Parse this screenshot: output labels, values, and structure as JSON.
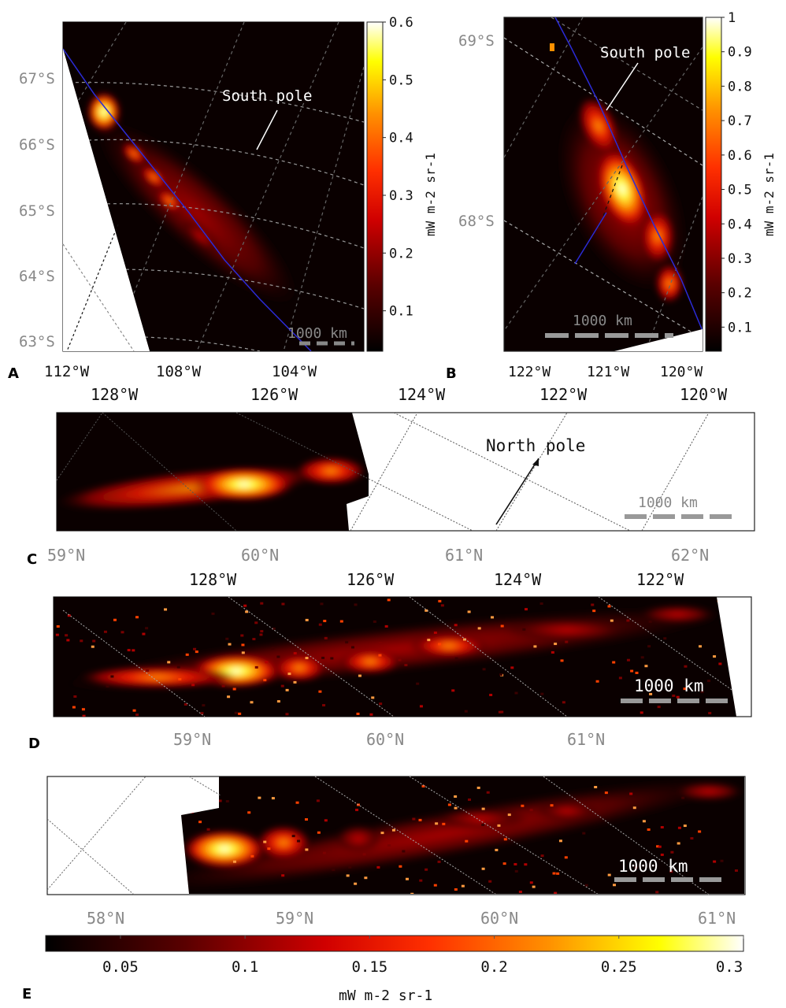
{
  "colors": {
    "cmap": [
      "#000000",
      "#5a0000",
      "#c00000",
      "#ff2a00",
      "#ff8c00",
      "#ffff00",
      "#ffffff"
    ],
    "grid_dark": "#555555",
    "grid_light": "#aaaaaa",
    "track": "#2b2bd6"
  },
  "chart_data": [
    {
      "panel": "A",
      "type": "heatmap",
      "lat_labels": [
        "67°S",
        "66°S",
        "65°S",
        "64°S",
        "63°S"
      ],
      "lon_labels": [
        "112°W",
        "108°W",
        "104°W"
      ],
      "annotation": "South pole",
      "scale_bar": "1000 km",
      "colorbar": {
        "ticks": [
          0.1,
          0.2,
          0.3,
          0.4,
          0.5,
          0.6
        ],
        "range": [
          0.03,
          0.6
        ],
        "label": "mW m-2 sr-1"
      }
    },
    {
      "panel": "B",
      "type": "heatmap",
      "lat_labels": [
        "69°S",
        "68°S"
      ],
      "lon_labels": [
        "122°W",
        "121°W",
        "120°W"
      ],
      "annotation": "South pole",
      "scale_bar": "1000 km",
      "colorbar": {
        "ticks": [
          0.1,
          0.2,
          0.3,
          0.4,
          0.5,
          0.6,
          0.7,
          0.8,
          0.9,
          1
        ],
        "range": [
          0.03,
          1
        ],
        "label": "mW m-2 sr-1"
      }
    },
    {
      "panel": "C",
      "type": "heatmap",
      "lon_labels": [
        "128°W",
        "126°W",
        "124°W",
        "122°W",
        "120°W"
      ],
      "lat_labels": [
        "59°N",
        "60°N",
        "61°N",
        "62°N"
      ],
      "annotation": "North pole",
      "scale_bar": "1000 km"
    },
    {
      "panel": "D",
      "type": "heatmap",
      "lon_labels": [
        "128°W",
        "126°W",
        "124°W",
        "122°W"
      ],
      "lat_labels": [
        "59°N",
        "60°N",
        "61°N"
      ],
      "scale_bar": "1000 km"
    },
    {
      "panel": "E",
      "type": "heatmap",
      "lat_labels": [
        "58°N",
        "59°N",
        "60°N",
        "61°N"
      ],
      "scale_bar": "1000 km",
      "colorbar": {
        "ticks": [
          0.05,
          0.1,
          0.15,
          0.2,
          0.25,
          0.3
        ],
        "range": [
          0.02,
          0.3
        ],
        "label": "mW m-2 sr-1"
      }
    }
  ]
}
